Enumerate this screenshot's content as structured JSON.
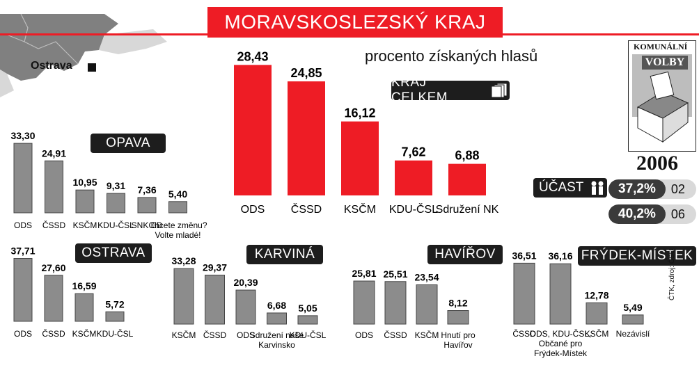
{
  "title": "MORAVSKOSLEZSKÝ KRAJ",
  "subtitle": "procento získaných hlasů",
  "map": {
    "city": "Ostrava"
  },
  "stamp": {
    "top": "KOMUNÁLNÍ",
    "label": "VOLBY",
    "year": "2006"
  },
  "turnout": {
    "label": "ÚČAST",
    "icon": "people-icon",
    "rows": [
      {
        "value": "37,2%",
        "year": "02"
      },
      {
        "value": "40,2%",
        "year": "06"
      }
    ]
  },
  "source": "ČTK, zdroj: ČSÚ",
  "colors": {
    "red": "#ee1c25",
    "gray": "#8c8c8c",
    "dark": "#1d1d1d"
  },
  "chart_data": [
    {
      "type": "bar",
      "title": "KRAJ CELKEM",
      "categories": [
        "ODS",
        "ČSSD",
        "KSČM",
        "KDU-ČSL",
        "Sdružení NK"
      ],
      "values": [
        28.43,
        24.85,
        16.12,
        7.62,
        6.88
      ],
      "labels": [
        "28,43",
        "24,85",
        "16,12",
        "7,62",
        "6,88"
      ],
      "color": "#ee1c25"
    },
    {
      "type": "bar",
      "title": "OPAVA",
      "categories": [
        "ODS",
        "ČSSD",
        "KSČM",
        "KDU-ČSL",
        "SNK ED",
        "Chcete změnu? Volte mladé!"
      ],
      "values": [
        33.3,
        24.91,
        10.95,
        9.31,
        7.36,
        5.4
      ],
      "labels": [
        "33,30",
        "24,91",
        "10,95",
        "9,31",
        "7,36",
        "5,40"
      ],
      "color": "#8c8c8c"
    },
    {
      "type": "bar",
      "title": "OSTRAVA",
      "categories": [
        "ODS",
        "ČSSD",
        "KSČM",
        "KDU-ČSL"
      ],
      "values": [
        37.71,
        27.6,
        16.59,
        5.72
      ],
      "labels": [
        "37,71",
        "27,60",
        "16,59",
        "5,72"
      ],
      "color": "#8c8c8c"
    },
    {
      "type": "bar",
      "title": "KARVINÁ",
      "categories": [
        "KSČM",
        "ČSSD",
        "ODS",
        "Sdružení naše Karvinsko",
        "KDU-ČSL"
      ],
      "values": [
        33.28,
        29.37,
        20.39,
        6.68,
        5.05
      ],
      "labels": [
        "33,28",
        "29,37",
        "20,39",
        "6,68",
        "5,05"
      ],
      "color": "#8c8c8c"
    },
    {
      "type": "bar",
      "title": "HAVÍŘOV",
      "categories": [
        "ODS",
        "ČSSD",
        "KSČM",
        "Hnutí pro Havířov"
      ],
      "values": [
        25.81,
        25.51,
        23.54,
        8.12
      ],
      "labels": [
        "25,81",
        "25,51",
        "23,54",
        "8,12"
      ],
      "color": "#8c8c8c"
    },
    {
      "type": "bar",
      "title": "FRÝDEK-MÍSTEK",
      "categories": [
        "ČSSD",
        "ODS, KDU-ČSL, Občané pro Frýdek-Místek",
        "KSČM",
        "Nezávislí"
      ],
      "values": [
        36.51,
        36.16,
        12.78,
        5.49
      ],
      "labels": [
        "36,51",
        "36,16",
        "12,78",
        "5,49"
      ],
      "color": "#8c8c8c"
    }
  ]
}
